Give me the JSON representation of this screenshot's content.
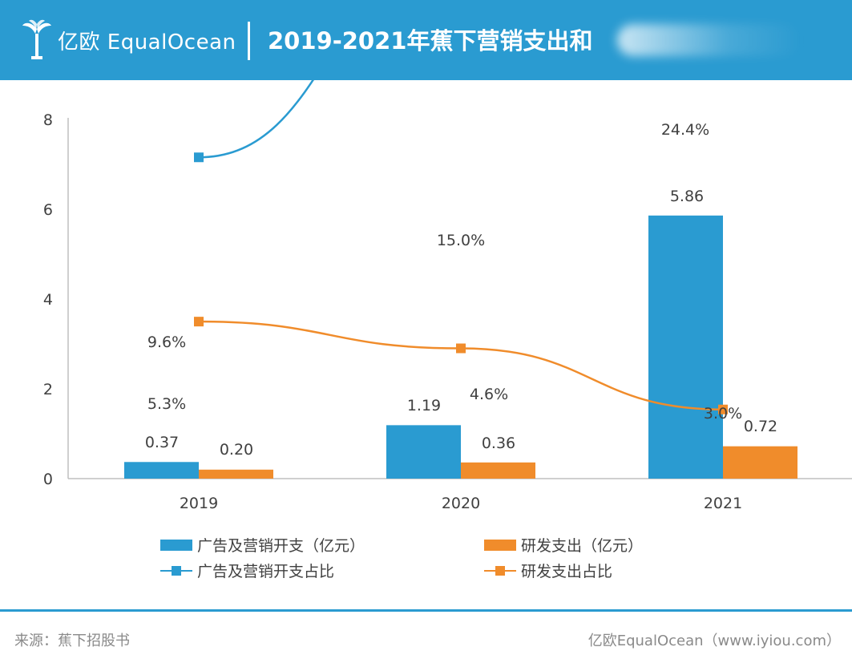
{
  "header": {
    "logo_text": "亿欧 EqualOcean",
    "title": "2019-2021年蕉下营销支出和"
  },
  "chart_data": {
    "type": "bar",
    "categories": [
      "2019",
      "2020",
      "2021"
    ],
    "ylim": [
      0,
      8
    ],
    "y_ticks": [
      0,
      2,
      4,
      6,
      8
    ],
    "series": [
      {
        "name": "广告及营销开支（亿元）",
        "kind": "bar",
        "color": "#2a9bd1",
        "values": [
          0.37,
          1.19,
          5.86
        ],
        "labels": [
          "0.37",
          "1.19",
          "5.86"
        ]
      },
      {
        "name": "研发支出（亿元）",
        "kind": "bar",
        "color": "#f08c2b",
        "values": [
          0.2,
          0.36,
          0.72
        ],
        "labels": [
          "0.20",
          "0.36",
          "0.72"
        ]
      },
      {
        "name": "广告及营销开支占比",
        "kind": "line",
        "color": "#2a9bd1",
        "values": [
          9.6,
          15.0,
          24.4
        ],
        "labels": [
          "9.6%",
          "15.0%",
          "24.4%"
        ]
      },
      {
        "name": "研发支出占比",
        "kind": "line",
        "color": "#f08c2b",
        "values": [
          5.3,
          4.6,
          3.0
        ],
        "labels": [
          "5.3%",
          "4.6%",
          "3.0%"
        ]
      }
    ],
    "grid": false,
    "legend_position": "bottom"
  },
  "legend": {
    "items": [
      "广告及营销开支（亿元）",
      "研发支出（亿元）",
      "广告及营销开支占比",
      "研发支出占比"
    ]
  },
  "footer": {
    "source": "来源：蕉下招股书",
    "brand": "亿欧EqualOcean（www.iyiou.com）"
  }
}
